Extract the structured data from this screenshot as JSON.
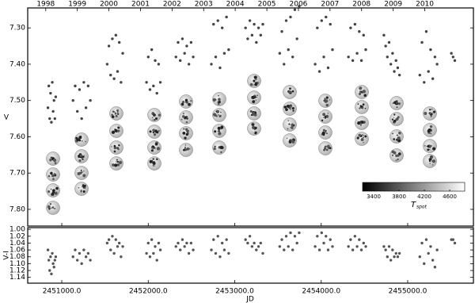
{
  "chart_data": [
    {
      "type": "scatter",
      "y_label": "V",
      "color": "#444444",
      "invert_y": true,
      "xlim": [
        2450606,
        2455760
      ],
      "ylim": [
        7.245,
        7.846
      ],
      "yticks": [
        {
          "value": 7.3,
          "label": "7.30"
        },
        {
          "value": 7.4,
          "label": "7.40"
        },
        {
          "value": 7.5,
          "label": "7.50"
        },
        {
          "value": 7.6,
          "label": "7.60"
        },
        {
          "value": 7.7,
          "label": "7.70"
        },
        {
          "value": 7.8,
          "label": "7.80"
        }
      ],
      "top_xticks": [
        {
          "value": 2450814.5,
          "label": "1998"
        },
        {
          "value": 2451179.5,
          "label": "1999"
        },
        {
          "value": 2451544.5,
          "label": "2000"
        },
        {
          "value": 2451910.5,
          "label": "2001"
        },
        {
          "value": 2452275.5,
          "label": "2002"
        },
        {
          "value": 2452640.5,
          "label": "2003"
        },
        {
          "value": 2453005.5,
          "label": "2004"
        },
        {
          "value": 2453371.5,
          "label": "2005"
        },
        {
          "value": 2453736.5,
          "label": "2006"
        },
        {
          "value": 2454101.5,
          "label": "2007"
        },
        {
          "value": 2454466.5,
          "label": "2008"
        },
        {
          "value": 2454832.5,
          "label": "2009"
        },
        {
          "value": 2455197.5,
          "label": "2010"
        }
      ],
      "colorbar": {
        "label": "T",
        "label_sub": "spot",
        "lim": [
          3225,
          4837
        ],
        "ticks": [
          3400,
          3800,
          4200,
          4600
        ]
      },
      "x": [
        2450840,
        2450850,
        2450860,
        2450870,
        2450880,
        2450890,
        2450900,
        2450910,
        2450920,
        2450930,
        2451130,
        2451155,
        2451180,
        2451205,
        2451230,
        2451255,
        2451280,
        2451305,
        2451330,
        2451525,
        2451545,
        2451565,
        2451585,
        2451605,
        2451625,
        2451645,
        2451665,
        2451685,
        2451705,
        2451980,
        2452000,
        2452020,
        2452040,
        2452060,
        2452080,
        2452100,
        2452120,
        2452140,
        2452320,
        2452345,
        2452370,
        2452395,
        2452420,
        2452445,
        2452470,
        2452495,
        2452520,
        2452730,
        2452755,
        2452780,
        2452805,
        2452830,
        2452855,
        2452880,
        2452905,
        2452930,
        2453125,
        2453150,
        2453175,
        2453200,
        2453225,
        2453250,
        2453275,
        2453300,
        2453325,
        2453520,
        2453545,
        2453570,
        2453595,
        2453620,
        2453645,
        2453670,
        2453695,
        2453720,
        2453745,
        2453930,
        2453955,
        2453980,
        2454005,
        2454030,
        2454055,
        2454080,
        2454105,
        2454130,
        2454315,
        2454340,
        2454365,
        2454390,
        2454415,
        2454440,
        2454465,
        2454490,
        2454515,
        2454725,
        2454745,
        2454765,
        2454785,
        2454805,
        2454825,
        2454845,
        2454865,
        2454885,
        2454905,
        2455140,
        2455165,
        2455190,
        2455215,
        2455240,
        2455265,
        2455290,
        2455315,
        2455340,
        2455505,
        2455525,
        2455545
      ],
      "values": [
        7.52,
        7.46,
        7.55,
        7.48,
        7.56,
        7.45,
        7.53,
        7.5,
        7.55,
        7.49,
        7.5,
        7.46,
        7.53,
        7.47,
        7.55,
        7.45,
        7.52,
        7.46,
        7.5,
        7.4,
        7.35,
        7.43,
        7.33,
        7.44,
        7.32,
        7.42,
        7.34,
        7.45,
        7.37,
        7.45,
        7.38,
        7.47,
        7.36,
        7.46,
        7.39,
        7.48,
        7.4,
        7.45,
        7.38,
        7.34,
        7.39,
        7.33,
        7.37,
        7.35,
        7.4,
        7.34,
        7.38,
        7.4,
        7.29,
        7.38,
        7.28,
        7.41,
        7.3,
        7.37,
        7.27,
        7.36,
        7.3,
        7.33,
        7.28,
        7.32,
        7.29,
        7.34,
        7.3,
        7.32,
        7.29,
        7.37,
        7.31,
        7.4,
        7.28,
        7.36,
        7.27,
        7.38,
        7.25,
        7.33,
        7.24,
        7.4,
        7.3,
        7.42,
        7.28,
        7.38,
        7.27,
        7.41,
        7.29,
        7.36,
        7.38,
        7.3,
        7.39,
        7.29,
        7.37,
        7.31,
        7.39,
        7.32,
        7.36,
        7.32,
        7.35,
        7.38,
        7.34,
        7.4,
        7.37,
        7.42,
        7.39,
        7.41,
        7.43,
        7.43,
        7.34,
        7.45,
        7.31,
        7.42,
        7.36,
        7.44,
        7.38,
        7.4,
        7.37,
        7.38,
        7.39
      ]
    },
    {
      "type": "scatter",
      "y_label": "V-I",
      "x_label": "JD",
      "color": "#555555",
      "invert_y": true,
      "xlim": [
        2450606,
        2455760
      ],
      "ylim": [
        0.995,
        1.157
      ],
      "yticks": [
        {
          "value": 1.0,
          "label": "1.00"
        },
        {
          "value": 1.02,
          "label": "1.02"
        },
        {
          "value": 1.04,
          "label": "1.04"
        },
        {
          "value": 1.06,
          "label": "1.06"
        },
        {
          "value": 1.08,
          "label": "1.08"
        },
        {
          "value": 1.1,
          "label": "1.10"
        },
        {
          "value": 1.12,
          "label": "1.12"
        },
        {
          "value": 1.14,
          "label": "1.14"
        }
      ],
      "xticks": [
        {
          "value": 2451000,
          "label": "2451000.0"
        },
        {
          "value": 2452000,
          "label": "2452000.0"
        },
        {
          "value": 2453000,
          "label": "2453000.0"
        },
        {
          "value": 2454000,
          "label": "2454000.0"
        },
        {
          "value": 2455000,
          "label": "2455000.0"
        }
      ],
      "x": [
        2450840,
        2450850,
        2450860,
        2450870,
        2450880,
        2450890,
        2450900,
        2450910,
        2450920,
        2450930,
        2451130,
        2451155,
        2451180,
        2451205,
        2451230,
        2451255,
        2451280,
        2451305,
        2451330,
        2451525,
        2451545,
        2451565,
        2451585,
        2451605,
        2451625,
        2451645,
        2451665,
        2451685,
        2451705,
        2451980,
        2452000,
        2452020,
        2452040,
        2452060,
        2452080,
        2452100,
        2452120,
        2452140,
        2452320,
        2452345,
        2452370,
        2452395,
        2452420,
        2452445,
        2452470,
        2452495,
        2452520,
        2452730,
        2452755,
        2452780,
        2452805,
        2452830,
        2452855,
        2452880,
        2452905,
        2452930,
        2453125,
        2453150,
        2453175,
        2453200,
        2453225,
        2453250,
        2453275,
        2453300,
        2453325,
        2453520,
        2453545,
        2453570,
        2453595,
        2453620,
        2453645,
        2453670,
        2453695,
        2453720,
        2453745,
        2453930,
        2453955,
        2453980,
        2454005,
        2454030,
        2454055,
        2454080,
        2454105,
        2454130,
        2454315,
        2454340,
        2454365,
        2454390,
        2454415,
        2454440,
        2454465,
        2454490,
        2454515,
        2454725,
        2454745,
        2454765,
        2454785,
        2454805,
        2454825,
        2454845,
        2454865,
        2454885,
        2454905,
        2455140,
        2455165,
        2455190,
        2455215,
        2455240,
        2455265,
        2455290,
        2455315,
        2455340,
        2455505,
        2455525,
        2455545
      ],
      "values": [
        1.06,
        1.09,
        1.12,
        1.08,
        1.13,
        1.07,
        1.1,
        1.11,
        1.09,
        1.08,
        1.08,
        1.06,
        1.09,
        1.07,
        1.1,
        1.06,
        1.08,
        1.07,
        1.09,
        1.04,
        1.03,
        1.06,
        1.02,
        1.07,
        1.03,
        1.05,
        1.04,
        1.08,
        1.05,
        1.07,
        1.04,
        1.08,
        1.03,
        1.07,
        1.05,
        1.09,
        1.04,
        1.06,
        1.05,
        1.04,
        1.06,
        1.03,
        1.05,
        1.04,
        1.07,
        1.04,
        1.06,
        1.06,
        1.03,
        1.07,
        1.02,
        1.08,
        1.04,
        1.06,
        1.03,
        1.07,
        1.03,
        1.04,
        1.02,
        1.05,
        1.04,
        1.06,
        1.05,
        1.04,
        1.07,
        1.05,
        1.03,
        1.06,
        1.02,
        1.05,
        1.01,
        1.06,
        1.02,
        1.04,
        1.01,
        1.05,
        1.02,
        1.06,
        1.01,
        1.04,
        1.02,
        1.06,
        1.03,
        1.05,
        1.05,
        1.03,
        1.06,
        1.02,
        1.05,
        1.03,
        1.06,
        1.04,
        1.05,
        1.05,
        1.06,
        1.08,
        1.05,
        1.09,
        1.06,
        1.08,
        1.07,
        1.08,
        1.07,
        1.08,
        1.04,
        1.1,
        1.03,
        1.07,
        1.05,
        1.09,
        1.11,
        1.06,
        1.03,
        1.03,
        1.04
      ]
    }
  ]
}
